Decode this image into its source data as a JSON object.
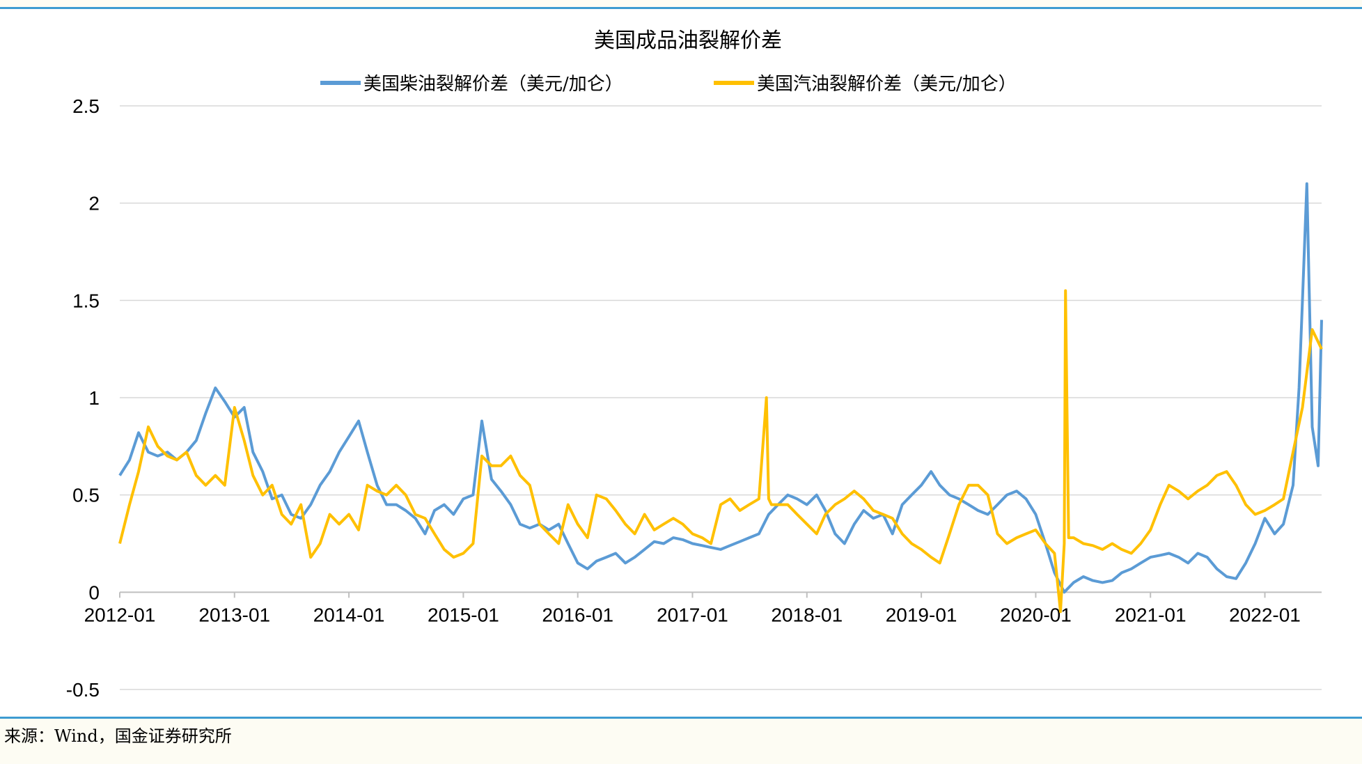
{
  "source_text": "来源：Wind，国金证券研究所",
  "chart_data": {
    "type": "line",
    "title": "美国成品油裂解价差",
    "xlabel": "",
    "ylabel": "",
    "x_tick_labels": [
      "2012-01",
      "2013-01",
      "2014-01",
      "2015-01",
      "2016-01",
      "2017-01",
      "2018-01",
      "2019-01",
      "2020-01",
      "2021-01",
      "2022-01"
    ],
    "y_tick_labels": [
      "2.5",
      "2",
      "1.5",
      "1",
      "0.5",
      "0",
      "-0.5"
    ],
    "ylim": [
      -0.5,
      2.5
    ],
    "xlim": [
      "2012-01-01",
      "2022-07-01"
    ],
    "grid": true,
    "legend_position": "top",
    "series": [
      {
        "name": "美国柴油裂解价差（美元/加仑）",
        "color": "#5b9bd5",
        "x": [
          "2012-01-01",
          "2012-02-01",
          "2012-03-01",
          "2012-04-01",
          "2012-05-01",
          "2012-06-01",
          "2012-07-01",
          "2012-08-01",
          "2012-09-01",
          "2012-10-01",
          "2012-11-01",
          "2012-12-01",
          "2013-01-01",
          "2013-02-01",
          "2013-03-01",
          "2013-04-01",
          "2013-05-01",
          "2013-06-01",
          "2013-07-01",
          "2013-08-01",
          "2013-09-01",
          "2013-10-01",
          "2013-11-01",
          "2013-12-01",
          "2014-01-01",
          "2014-02-01",
          "2014-03-01",
          "2014-04-01",
          "2014-05-01",
          "2014-06-01",
          "2014-07-01",
          "2014-08-01",
          "2014-09-01",
          "2014-10-01",
          "2014-11-01",
          "2014-12-01",
          "2015-01-01",
          "2015-02-01",
          "2015-03-01",
          "2015-04-01",
          "2015-05-01",
          "2015-06-01",
          "2015-07-01",
          "2015-08-01",
          "2015-09-01",
          "2015-10-01",
          "2015-11-01",
          "2015-12-01",
          "2016-01-01",
          "2016-02-01",
          "2016-03-01",
          "2016-04-01",
          "2016-05-01",
          "2016-06-01",
          "2016-07-01",
          "2016-08-01",
          "2016-09-01",
          "2016-10-01",
          "2016-11-01",
          "2016-12-01",
          "2017-01-01",
          "2017-02-01",
          "2017-03-01",
          "2017-04-01",
          "2017-05-01",
          "2017-06-01",
          "2017-07-01",
          "2017-08-01",
          "2017-09-01",
          "2017-10-01",
          "2017-11-01",
          "2017-12-01",
          "2018-01-01",
          "2018-02-01",
          "2018-03-01",
          "2018-04-01",
          "2018-05-01",
          "2018-06-01",
          "2018-07-01",
          "2018-08-01",
          "2018-09-01",
          "2018-10-01",
          "2018-11-01",
          "2018-12-01",
          "2019-01-01",
          "2019-02-01",
          "2019-03-01",
          "2019-04-01",
          "2019-05-01",
          "2019-06-01",
          "2019-07-01",
          "2019-08-01",
          "2019-09-01",
          "2019-10-01",
          "2019-11-01",
          "2019-12-01",
          "2020-01-01",
          "2020-02-01",
          "2020-03-01",
          "2020-04-01",
          "2020-05-01",
          "2020-06-01",
          "2020-07-01",
          "2020-08-01",
          "2020-09-01",
          "2020-10-01",
          "2020-11-01",
          "2020-12-01",
          "2021-01-01",
          "2021-02-01",
          "2021-03-01",
          "2021-04-01",
          "2021-05-01",
          "2021-06-01",
          "2021-07-01",
          "2021-08-01",
          "2021-09-01",
          "2021-10-01",
          "2021-11-01",
          "2021-12-01",
          "2022-01-01",
          "2022-02-01",
          "2022-03-01",
          "2022-04-01",
          "2022-04-20",
          "2022-05-01",
          "2022-05-15",
          "2022-06-01",
          "2022-06-20",
          "2022-07-01"
        ],
        "values": [
          0.6,
          0.68,
          0.82,
          0.72,
          0.7,
          0.72,
          0.68,
          0.72,
          0.78,
          0.92,
          1.05,
          0.98,
          0.9,
          0.95,
          0.72,
          0.62,
          0.48,
          0.5,
          0.4,
          0.38,
          0.45,
          0.55,
          0.62,
          0.72,
          0.8,
          0.88,
          0.72,
          0.55,
          0.45,
          0.45,
          0.42,
          0.38,
          0.3,
          0.42,
          0.45,
          0.4,
          0.48,
          0.5,
          0.88,
          0.58,
          0.52,
          0.45,
          0.35,
          0.33,
          0.35,
          0.32,
          0.35,
          0.25,
          0.15,
          0.12,
          0.16,
          0.18,
          0.2,
          0.15,
          0.18,
          0.22,
          0.26,
          0.25,
          0.28,
          0.27,
          0.25,
          0.24,
          0.23,
          0.22,
          0.24,
          0.26,
          0.28,
          0.3,
          0.4,
          0.45,
          0.5,
          0.48,
          0.45,
          0.5,
          0.42,
          0.3,
          0.25,
          0.35,
          0.42,
          0.38,
          0.4,
          0.3,
          0.45,
          0.5,
          0.55,
          0.62,
          0.55,
          0.5,
          0.48,
          0.45,
          0.42,
          0.4,
          0.45,
          0.5,
          0.52,
          0.48,
          0.4,
          0.25,
          0.1,
          0.0,
          0.05,
          0.08,
          0.06,
          0.05,
          0.06,
          0.1,
          0.12,
          0.15,
          0.18,
          0.19,
          0.2,
          0.18,
          0.15,
          0.2,
          0.18,
          0.12,
          0.08,
          0.07,
          0.15,
          0.25,
          0.38,
          0.3,
          0.35,
          0.55,
          1.05,
          1.5,
          2.1,
          0.85,
          0.65,
          1.4
        ]
      },
      {
        "name": "美国汽油裂解价差（美元/加仑）",
        "color": "#ffc000",
        "x": [
          "2012-01-01",
          "2012-02-01",
          "2012-03-01",
          "2012-04-01",
          "2012-05-01",
          "2012-06-01",
          "2012-07-01",
          "2012-08-01",
          "2012-09-01",
          "2012-10-01",
          "2012-11-01",
          "2012-12-01",
          "2013-01-01",
          "2013-02-01",
          "2013-03-01",
          "2013-04-01",
          "2013-05-01",
          "2013-06-01",
          "2013-07-01",
          "2013-08-01",
          "2013-09-01",
          "2013-10-01",
          "2013-11-01",
          "2013-12-01",
          "2014-01-01",
          "2014-02-01",
          "2014-03-01",
          "2014-04-01",
          "2014-05-01",
          "2014-06-01",
          "2014-07-01",
          "2014-08-01",
          "2014-09-01",
          "2014-10-01",
          "2014-11-01",
          "2014-12-01",
          "2015-01-01",
          "2015-02-01",
          "2015-03-01",
          "2015-04-01",
          "2015-05-01",
          "2015-06-01",
          "2015-07-01",
          "2015-08-01",
          "2015-09-01",
          "2015-10-01",
          "2015-11-01",
          "2015-12-01",
          "2016-01-01",
          "2016-02-01",
          "2016-03-01",
          "2016-04-01",
          "2016-05-01",
          "2016-06-01",
          "2016-07-01",
          "2016-08-01",
          "2016-09-01",
          "2016-10-01",
          "2016-11-01",
          "2016-12-01",
          "2017-01-01",
          "2017-02-01",
          "2017-03-01",
          "2017-04-01",
          "2017-05-01",
          "2017-06-01",
          "2017-07-01",
          "2017-08-01",
          "2017-08-25",
          "2017-09-01",
          "2017-09-10",
          "2017-10-01",
          "2017-11-01",
          "2017-12-01",
          "2018-01-01",
          "2018-02-01",
          "2018-03-01",
          "2018-04-01",
          "2018-05-01",
          "2018-06-01",
          "2018-07-01",
          "2018-08-01",
          "2018-09-01",
          "2018-10-01",
          "2018-11-01",
          "2018-12-01",
          "2019-01-01",
          "2019-02-01",
          "2019-03-01",
          "2019-04-01",
          "2019-05-01",
          "2019-06-01",
          "2019-07-01",
          "2019-08-01",
          "2019-09-01",
          "2019-10-01",
          "2019-11-01",
          "2019-12-01",
          "2020-01-01",
          "2020-02-01",
          "2020-03-01",
          "2020-03-20",
          "2020-04-01",
          "2020-04-05",
          "2020-04-15",
          "2020-05-01",
          "2020-06-01",
          "2020-07-01",
          "2020-08-01",
          "2020-09-01",
          "2020-10-01",
          "2020-11-01",
          "2020-12-01",
          "2021-01-01",
          "2021-02-01",
          "2021-03-01",
          "2021-04-01",
          "2021-05-01",
          "2021-06-01",
          "2021-07-01",
          "2021-08-01",
          "2021-09-01",
          "2021-10-01",
          "2021-11-01",
          "2021-12-01",
          "2022-01-01",
          "2022-02-01",
          "2022-03-01",
          "2022-04-01",
          "2022-05-01",
          "2022-06-01",
          "2022-07-01"
        ],
        "values": [
          0.25,
          0.45,
          0.62,
          0.85,
          0.75,
          0.7,
          0.68,
          0.72,
          0.6,
          0.55,
          0.6,
          0.55,
          0.95,
          0.78,
          0.6,
          0.5,
          0.55,
          0.4,
          0.35,
          0.45,
          0.18,
          0.25,
          0.4,
          0.35,
          0.4,
          0.32,
          0.55,
          0.52,
          0.5,
          0.55,
          0.5,
          0.4,
          0.38,
          0.3,
          0.22,
          0.18,
          0.2,
          0.25,
          0.7,
          0.65,
          0.65,
          0.7,
          0.6,
          0.55,
          0.35,
          0.3,
          0.25,
          0.45,
          0.35,
          0.28,
          0.5,
          0.48,
          0.42,
          0.35,
          0.3,
          0.4,
          0.32,
          0.35,
          0.38,
          0.35,
          0.3,
          0.28,
          0.25,
          0.45,
          0.48,
          0.42,
          0.45,
          0.48,
          1.0,
          0.48,
          0.45,
          0.45,
          0.45,
          0.4,
          0.35,
          0.3,
          0.4,
          0.45,
          0.48,
          0.52,
          0.48,
          0.42,
          0.4,
          0.38,
          0.3,
          0.25,
          0.22,
          0.18,
          0.15,
          0.3,
          0.45,
          0.55,
          0.55,
          0.5,
          0.3,
          0.25,
          0.28,
          0.3,
          0.32,
          0.25,
          0.2,
          -0.1,
          0.25,
          1.55,
          0.28,
          0.28,
          0.25,
          0.24,
          0.22,
          0.25,
          0.22,
          0.2,
          0.25,
          0.32,
          0.45,
          0.55,
          0.52,
          0.48,
          0.52,
          0.55,
          0.6,
          0.62,
          0.55,
          0.45,
          0.4,
          0.42,
          0.45,
          0.48,
          0.72,
          0.95,
          1.35,
          1.25
        ]
      }
    ]
  }
}
